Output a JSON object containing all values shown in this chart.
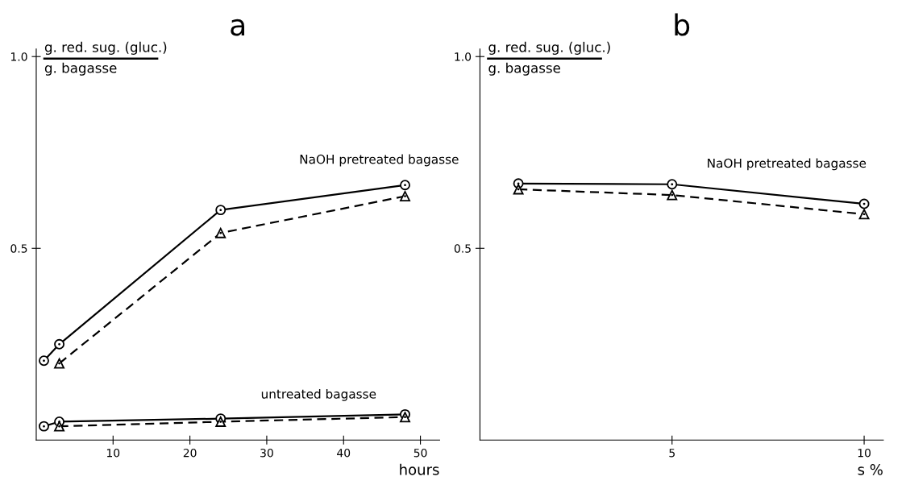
{
  "chart_data": [
    {
      "type": "line",
      "title": "a",
      "xlabel": "hours",
      "ylabel": "g. red. sug. (gluc.)\ng. bagasse",
      "xlim": [
        0,
        52.5
      ],
      "xticks": [
        10,
        20,
        30,
        40,
        50
      ],
      "ylim": [
        0,
        1.02
      ],
      "yticks": [
        0.5,
        {
          "value": 1.0,
          "label": "1.0"
        }
      ],
      "grid": false,
      "legend": false,
      "annotations": [
        "NaOH pretreated bagasse",
        "untreated bagasse"
      ],
      "series": [
        {
          "color": "#000000",
          "marker": "circle",
          "line_style": "solid",
          "x": [
            1,
            3,
            24,
            48
          ],
          "values": [
            0.207,
            0.25,
            0.6,
            0.665
          ]
        },
        {
          "color": "#000000",
          "marker": "triangle",
          "line_style": "dashed",
          "x": [
            3,
            24,
            48
          ],
          "values": [
            0.2,
            0.54,
            0.636
          ]
        },
        {
          "color": "#000000",
          "marker": "circle",
          "line_style": "solid",
          "x": [
            1,
            3,
            24,
            48
          ],
          "values": [
            0.036,
            0.048,
            0.056,
            0.067
          ]
        },
        {
          "color": "#000000",
          "marker": "triangle",
          "line_style": "dashed",
          "x": [
            3,
            24,
            48
          ],
          "values": [
            0.036,
            0.048,
            0.06
          ]
        }
      ]
    },
    {
      "type": "line",
      "title": "b",
      "xlabel": "s %",
      "ylabel": "g. red. sug. (gluc.)\ng. bagasse",
      "xlim": [
        0,
        10.5
      ],
      "xticks": [
        5,
        10
      ],
      "ylim": [
        0,
        1.02
      ],
      "yticks": [
        0.5,
        {
          "value": 1.0,
          "label": "1.0"
        }
      ],
      "grid": false,
      "legend": false,
      "annotations": [
        "NaOH pretreated bagasse"
      ],
      "series": [
        {
          "color": "#000000",
          "marker": "circle",
          "line_style": "solid",
          "x": [
            1,
            5,
            10
          ],
          "values": [
            0.669,
            0.667,
            0.616
          ]
        },
        {
          "color": "#000000",
          "marker": "triangle",
          "line_style": "dashed",
          "x": [
            1,
            5,
            10
          ],
          "values": [
            0.654,
            0.639,
            0.589
          ]
        }
      ]
    }
  ]
}
